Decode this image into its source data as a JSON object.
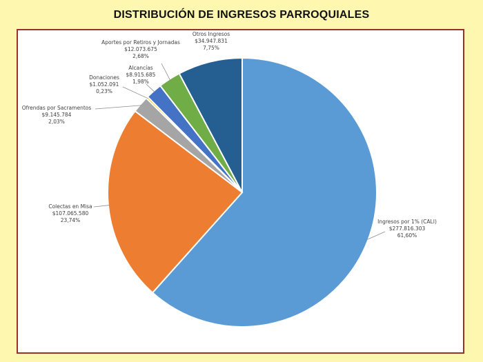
{
  "title": "DISTRIBUCIÓN DE INGRESOS PARROQUIALES",
  "chart_data": {
    "type": "pie",
    "title": "DISTRIBUCIÓN DE INGRESOS PARROQUIALES",
    "slices": [
      {
        "name": "Ingresos por 1% (CALI)",
        "value_label": "$277.816.303",
        "percent_label": "61,60%",
        "value": 277816303,
        "percent": 61.6,
        "color": "#5B9BD5"
      },
      {
        "name": "Colectas en Misa",
        "value_label": "$107.065.580",
        "percent_label": "23,74%",
        "value": 107065580,
        "percent": 23.74,
        "color": "#ED7D31"
      },
      {
        "name": "Ofrendas por Sacramentos",
        "value_label": "$9.145.784",
        "percent_label": "2,03%",
        "value": 9145784,
        "percent": 2.03,
        "color": "#A5A5A5"
      },
      {
        "name": "Donaciones",
        "value_label": "$1.052.091",
        "percent_label": "0,23%",
        "value": 1052091,
        "percent": 0.23,
        "color": "#FFC000"
      },
      {
        "name": "Alcancías",
        "value_label": "$8.915.685",
        "percent_label": "1,98%",
        "value": 8915685,
        "percent": 1.98,
        "color": "#4472C4"
      },
      {
        "name": "Aportes por Retiros y Jornadas",
        "value_label": "$12.073.675",
        "percent_label": "2,68%",
        "value": 12073675,
        "percent": 2.68,
        "color": "#70AD47"
      },
      {
        "name": "Otros Ingresos",
        "value_label": "$34.947.831",
        "percent_label": "7,75%",
        "value": 34947831,
        "percent": 7.75,
        "color": "#255E91"
      }
    ]
  }
}
